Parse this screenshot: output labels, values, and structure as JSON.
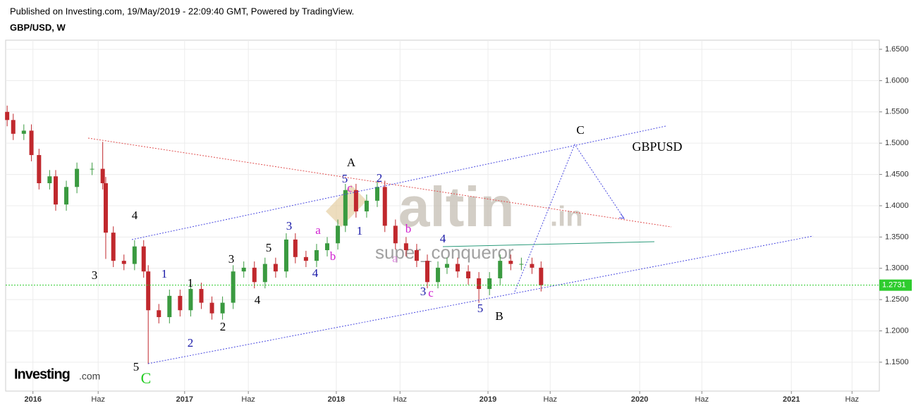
{
  "header": {
    "published": "Published on Investing.com, 19/May/2019 - 22:09:40 GMT, Powered by TradingView.",
    "symbol": "GBP/USD, W"
  },
  "chart_data": {
    "type": "candlestick",
    "x": [
      2015.83,
      2015.87,
      2015.94,
      2015.99,
      2016.04,
      2016.11,
      2016.15,
      2016.22,
      2016.29,
      2016.39,
      2016.46,
      2016.48,
      2016.53,
      2016.6,
      2016.67,
      2016.73,
      2016.76,
      2016.83,
      2016.9,
      2016.97,
      2017.04,
      2017.11,
      2017.18,
      2017.25,
      2017.32,
      2017.39,
      2017.46,
      2017.53,
      2017.6,
      2017.67,
      2017.73,
      2017.8,
      2017.87,
      2017.94,
      2018.01,
      2018.06,
      2018.13,
      2018.2,
      2018.27,
      2018.32,
      2018.39,
      2018.46,
      2018.53,
      2018.6,
      2018.67,
      2018.73,
      2018.8,
      2018.87,
      2018.94,
      2019.01,
      2019.08,
      2019.15,
      2019.22,
      2019.29,
      2019.35
    ],
    "open": [
      1.55,
      1.537,
      1.515,
      1.52,
      1.481,
      1.436,
      1.447,
      1.402,
      1.43,
      1.459,
      1.459,
      1.436,
      1.357,
      1.312,
      1.307,
      1.335,
      1.295,
      1.233,
      1.222,
      1.256,
      1.233,
      1.267,
      1.245,
      1.228,
      1.245,
      1.295,
      1.301,
      1.278,
      1.307,
      1.295,
      1.346,
      1.318,
      1.312,
      1.329,
      1.34,
      1.368,
      1.425,
      1.391,
      1.408,
      1.43,
      1.368,
      1.34,
      1.329,
      1.312,
      1.278,
      1.301,
      1.307,
      1.295,
      1.284,
      1.267,
      1.284,
      1.312,
      1.307,
      1.307,
      1.301
    ],
    "high": [
      1.56,
      1.547,
      1.53,
      1.53,
      1.491,
      1.457,
      1.457,
      1.44,
      1.469,
      1.469,
      1.502,
      1.446,
      1.367,
      1.322,
      1.345,
      1.345,
      1.305,
      1.243,
      1.266,
      1.266,
      1.277,
      1.277,
      1.255,
      1.255,
      1.305,
      1.311,
      1.311,
      1.317,
      1.317,
      1.356,
      1.356,
      1.328,
      1.339,
      1.35,
      1.378,
      1.435,
      1.435,
      1.418,
      1.44,
      1.44,
      1.378,
      1.35,
      1.339,
      1.322,
      1.311,
      1.317,
      1.317,
      1.305,
      1.294,
      1.294,
      1.322,
      1.322,
      1.317,
      1.317,
      1.311
    ],
    "low": [
      1.527,
      1.505,
      1.505,
      1.471,
      1.426,
      1.426,
      1.392,
      1.392,
      1.42,
      1.449,
      1.426,
      1.315,
      1.302,
      1.297,
      1.297,
      1.285,
      1.147,
      1.212,
      1.212,
      1.223,
      1.223,
      1.235,
      1.218,
      1.218,
      1.235,
      1.285,
      1.268,
      1.268,
      1.285,
      1.285,
      1.308,
      1.302,
      1.302,
      1.319,
      1.33,
      1.358,
      1.381,
      1.381,
      1.398,
      1.358,
      1.33,
      1.319,
      1.302,
      1.268,
      1.268,
      1.291,
      1.285,
      1.274,
      1.245,
      1.257,
      1.274,
      1.297,
      1.297,
      1.291,
      1.263
    ],
    "close": [
      1.537,
      1.515,
      1.52,
      1.481,
      1.436,
      1.447,
      1.402,
      1.43,
      1.459,
      1.459,
      1.436,
      1.357,
      1.312,
      1.307,
      1.335,
      1.295,
      1.233,
      1.222,
      1.256,
      1.233,
      1.267,
      1.245,
      1.228,
      1.245,
      1.295,
      1.301,
      1.278,
      1.307,
      1.295,
      1.346,
      1.318,
      1.312,
      1.329,
      1.34,
      1.368,
      1.425,
      1.391,
      1.408,
      1.43,
      1.368,
      1.34,
      1.329,
      1.312,
      1.278,
      1.301,
      1.307,
      1.295,
      1.284,
      1.267,
      1.284,
      1.312,
      1.307,
      1.307,
      1.301,
      1.273
    ],
    "up_color": "#3a9a40",
    "down_color": "#c0282d",
    "last_price": 1.2731,
    "last_price_color": "#2ecc2e",
    "xlim": [
      2015.82,
      2021.58
    ],
    "ylim": [
      1.1038,
      1.6646
    ],
    "xticks": [
      2016,
      {
        "value": 2016.43,
        "label": "Haz"
      },
      2017,
      {
        "value": 2017.42,
        "label": "Haz"
      },
      2018,
      {
        "value": 2018.42,
        "label": "Haz"
      },
      2019,
      {
        "value": 2019.41,
        "label": "Haz"
      },
      2020,
      {
        "value": 2020.41,
        "label": "Haz"
      },
      2021,
      {
        "value": 2021.4,
        "label": "Haz"
      }
    ],
    "yticks": [
      {
        "value": 1.15,
        "label": "1.1500"
      },
      {
        "value": 1.2,
        "label": "1.2000"
      },
      {
        "value": 1.25,
        "label": "1.2500"
      },
      {
        "value": 1.3,
        "label": "1.3000"
      },
      {
        "value": 1.35,
        "label": "1.3500"
      },
      {
        "value": 1.4,
        "label": "1.4000"
      },
      {
        "value": 1.45,
        "label": "1.4500"
      },
      {
        "value": 1.5,
        "label": "1.5000"
      },
      {
        "value": 1.55,
        "label": "1.5500"
      },
      {
        "value": 1.6,
        "label": "1.6000"
      },
      {
        "value": 1.65,
        "label": "1.6500"
      }
    ],
    "grid": true,
    "annotations": [
      {
        "text": "4",
        "color": "#000"
      },
      {
        "text": "3",
        "color": "#000"
      },
      {
        "text": "1",
        "color": "#1a1aa8"
      },
      {
        "text": "1",
        "color": "#000"
      },
      {
        "text": "2",
        "color": "#1a1aa8"
      },
      {
        "text": "2",
        "color": "#000"
      },
      {
        "text": "5",
        "color": "#000"
      },
      {
        "text": "C",
        "color": "#22cc22"
      },
      {
        "text": "3",
        "color": "#000"
      },
      {
        "text": "4",
        "color": "#000"
      },
      {
        "text": "5",
        "color": "#000"
      },
      {
        "text": "3",
        "color": "#1a1aa8"
      },
      {
        "text": "4",
        "color": "#1a1aa8"
      },
      {
        "text": "a",
        "color": "#d020d0"
      },
      {
        "text": "b",
        "color": "#d020d0"
      },
      {
        "text": "A",
        "color": "#000"
      },
      {
        "text": "5",
        "color": "#1a1aa8"
      },
      {
        "text": "c",
        "color": "#d020d0"
      },
      {
        "text": "1",
        "color": "#1a1aa8"
      },
      {
        "text": "2",
        "color": "#1a1aa8"
      },
      {
        "text": "b",
        "color": "#d020d0"
      },
      {
        "text": "a",
        "color": "#e090e0"
      },
      {
        "text": "4",
        "color": "#1a1aa8"
      },
      {
        "text": "3",
        "color": "#1a1aa8"
      },
      {
        "text": "c",
        "color": "#d020d0"
      },
      {
        "text": "5",
        "color": "#1a1aa8"
      },
      {
        "text": "B",
        "color": "#000"
      },
      {
        "text": "C",
        "color": "#000"
      },
      {
        "text": "GBPUSD",
        "color": "#000"
      }
    ],
    "watermark": "altin",
    "watermark_suffix": ".in",
    "author": "super_conqueror",
    "logo": "Investing",
    "logo_suffix": ".com"
  }
}
